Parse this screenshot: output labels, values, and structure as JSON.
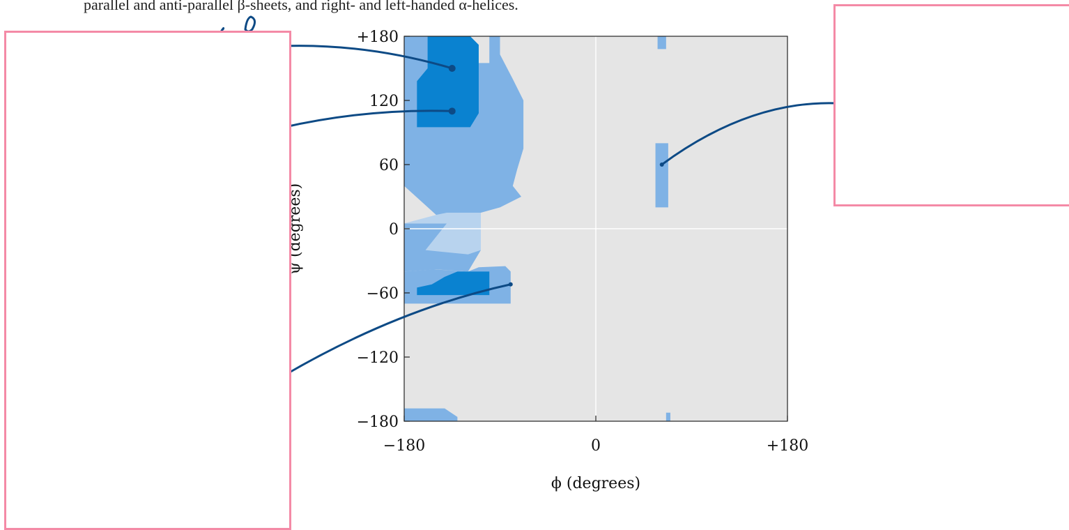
{
  "caption": "parallel and anti-parallel β-sheets, and right- and left-handed α-helices.",
  "colors": {
    "plot_background": "#e5e5e5",
    "allowed_region": "#7fb2e5",
    "core_region": "#0a82d0",
    "bridge_region": "#b8d3ee",
    "gridline": "#ffffff",
    "annotation_line": "#0d4a85",
    "overlay_border": "#f48aa6"
  },
  "chart_data": {
    "type": "heatmap",
    "title": "",
    "xlabel": "ϕ (degrees)",
    "ylabel": "ψ (degrees)",
    "xlim": [
      -180,
      180
    ],
    "ylim": [
      -180,
      180
    ],
    "x_ticks": [
      "−180",
      "0",
      "+180"
    ],
    "y_ticks": [
      "+180",
      "120",
      "60",
      "0",
      "−60",
      "−120",
      "−180"
    ],
    "y_tick_values": [
      180,
      120,
      60,
      0,
      -60,
      -120,
      -180
    ],
    "zero_gridlines": true,
    "regions": [
      {
        "level": "allowed",
        "polygon": [
          [
            -180,
            180
          ],
          [
            -140,
            180
          ],
          [
            -140,
            155
          ],
          [
            -100,
            155
          ],
          [
            -100,
            180
          ],
          [
            -90,
            180
          ],
          [
            -90,
            163
          ],
          [
            -78,
            140
          ],
          [
            -68,
            120
          ],
          [
            -68,
            75
          ],
          [
            -74,
            55
          ],
          [
            -78,
            40
          ],
          [
            -70,
            30
          ],
          [
            -90,
            20
          ],
          [
            -108,
            15
          ],
          [
            -108,
            -20
          ],
          [
            -120,
            -40
          ],
          [
            -150,
            -38
          ],
          [
            -180,
            -40
          ],
          [
            -180,
            5
          ],
          [
            -140,
            5
          ],
          [
            -150,
            13
          ],
          [
            -160,
            22
          ],
          [
            -180,
            40
          ]
        ]
      },
      {
        "level": "bridge",
        "polygon": [
          [
            -180,
            5
          ],
          [
            -140,
            5
          ],
          [
            -160,
            -20
          ],
          [
            -120,
            -24
          ],
          [
            -108,
            -20
          ],
          [
            -108,
            15
          ],
          [
            -140,
            15
          ],
          [
            -150,
            13
          ]
        ]
      },
      {
        "level": "allowed",
        "polygon": [
          [
            -180,
            -38
          ],
          [
            -152,
            -38
          ],
          [
            -180,
            -40
          ],
          [
            -180,
            -70
          ],
          [
            -80,
            -70
          ],
          [
            -80,
            -40
          ],
          [
            -85,
            -35
          ],
          [
            -110,
            -36
          ],
          [
            -120,
            -40
          ],
          [
            -152,
            -38
          ]
        ]
      },
      {
        "level": "allowed",
        "polygon": [
          [
            -180,
            -168
          ],
          [
            -180,
            -180
          ],
          [
            -130,
            -180
          ],
          [
            -130,
            -176
          ],
          [
            -142,
            -168
          ]
        ]
      },
      {
        "level": "allowed",
        "polygon": [
          [
            56,
            80
          ],
          [
            68,
            80
          ],
          [
            68,
            20
          ],
          [
            56,
            20
          ]
        ]
      },
      {
        "level": "allowed",
        "polygon": [
          [
            58,
            180
          ],
          [
            66,
            180
          ],
          [
            66,
            168
          ],
          [
            58,
            168
          ]
        ]
      },
      {
        "level": "allowed",
        "polygon": [
          [
            66,
            -172
          ],
          [
            70,
            -172
          ],
          [
            70,
            -180
          ],
          [
            66,
            -180
          ]
        ]
      },
      {
        "level": "core",
        "polygon": [
          [
            -158,
            180
          ],
          [
            -118,
            180
          ],
          [
            -110,
            172
          ],
          [
            -110,
            108
          ],
          [
            -118,
            95
          ],
          [
            -168,
            95
          ],
          [
            -168,
            138
          ],
          [
            -158,
            150
          ]
        ]
      },
      {
        "level": "core",
        "polygon": [
          [
            -130,
            -40
          ],
          [
            -142,
            -45
          ],
          [
            -154,
            -52
          ],
          [
            -168,
            -55
          ],
          [
            -168,
            -62
          ],
          [
            -100,
            -62
          ],
          [
            -100,
            -40
          ]
        ]
      }
    ],
    "annotation_points": [
      [
        -135,
        150
      ],
      [
        -135,
        110
      ],
      [
        -80,
        -52
      ],
      [
        62,
        60
      ]
    ]
  },
  "overlays": {
    "left_box": "",
    "right_box": ""
  }
}
